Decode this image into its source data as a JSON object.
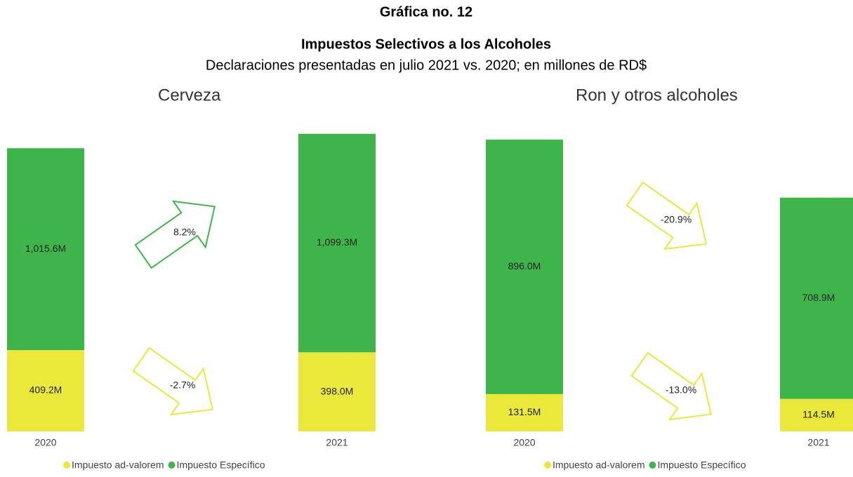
{
  "header": {
    "title": "Gráfica no. 12",
    "subtitle": "Impuestos Selectivos a los Alcoholes",
    "note": "Declaraciones presentadas en julio 2021 vs. 2020; en millones de RD$"
  },
  "chart_data": [
    {
      "type": "bar",
      "title": "Cerveza",
      "categories": [
        "2020",
        "2021"
      ],
      "series": [
        {
          "name": "Impuesto ad-valorem",
          "color": "#e9e83b",
          "values": [
            409.2,
            398.0
          ],
          "value_labels": [
            "409.2M",
            "398.0M"
          ]
        },
        {
          "name": "Impuesto Específico",
          "color": "#3db54a",
          "values": [
            1015.6,
            1099.3
          ],
          "value_labels": [
            "1,015.6M",
            "1,099.3M"
          ]
        }
      ],
      "ylim": [
        0,
        1500
      ],
      "annotations": [
        {
          "text": "8.2%",
          "color": "#3db54a",
          "direction": "up"
        },
        {
          "text": "-2.7%",
          "color": "#e9e83b",
          "direction": "down"
        }
      ]
    },
    {
      "type": "bar",
      "title": "Ron y otros alcoholes",
      "categories": [
        "2020",
        "2021"
      ],
      "series": [
        {
          "name": "Impuesto ad-valorem",
          "color": "#e9e83b",
          "values": [
            131.5,
            114.5
          ],
          "value_labels": [
            "131.5M",
            "114.5M"
          ]
        },
        {
          "name": "Impuesto Específico",
          "color": "#3db54a",
          "values": [
            896.0,
            708.9
          ],
          "value_labels": [
            "896.0M",
            "708.9M"
          ]
        }
      ],
      "ylim": [
        0,
        1050
      ],
      "annotations": [
        {
          "text": "-20.9%",
          "color": "#e9e83b",
          "direction": "down"
        },
        {
          "text": "-13.0%",
          "color": "#e9e83b",
          "direction": "down"
        }
      ]
    }
  ]
}
